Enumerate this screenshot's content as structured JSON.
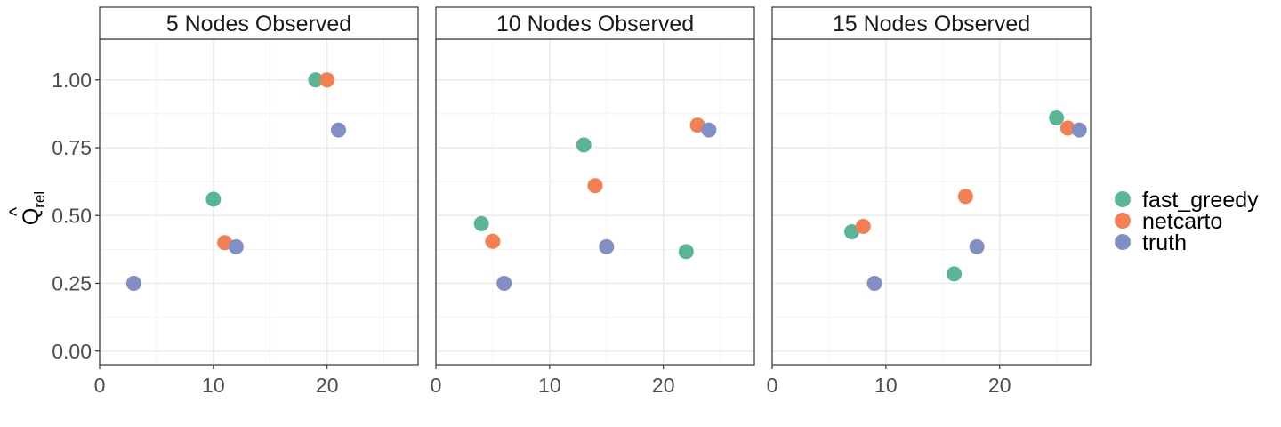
{
  "chart_data": {
    "type": "scatter",
    "ylabel": "Q̂rel",
    "ylabel_main": "Q",
    "ylabel_hat": "^",
    "ylabel_sub": "rel",
    "xlim": [
      0,
      28
    ],
    "ylim": [
      -0.05,
      1.15
    ],
    "x_ticks": [
      0,
      10,
      20
    ],
    "y_ticks": [
      0.0,
      0.25,
      0.5,
      0.75,
      1.0
    ],
    "y_tick_labels": [
      "0.00",
      "0.25",
      "0.50",
      "0.75",
      "1.00"
    ],
    "grid": true,
    "legend_position": "right",
    "legend": [
      {
        "name": "fast_greedy",
        "color": "#5ab595"
      },
      {
        "name": "netcarto",
        "color": "#f47f52"
      },
      {
        "name": "truth",
        "color": "#818fc4"
      }
    ],
    "panels": [
      {
        "title": "5 Nodes Observed",
        "points": [
          {
            "series": "fast_greedy",
            "x": 10,
            "y": 0.56
          },
          {
            "series": "fast_greedy",
            "x": 19,
            "y": 1.0
          },
          {
            "series": "netcarto",
            "x": 11,
            "y": 0.4
          },
          {
            "series": "netcarto",
            "x": 20,
            "y": 1.0
          },
          {
            "series": "truth",
            "x": 3,
            "y": 0.25
          },
          {
            "series": "truth",
            "x": 12,
            "y": 0.385
          },
          {
            "series": "truth",
            "x": 21,
            "y": 0.815
          }
        ]
      },
      {
        "title": "10 Nodes Observed",
        "points": [
          {
            "series": "fast_greedy",
            "x": 4,
            "y": 0.47
          },
          {
            "series": "fast_greedy",
            "x": 13,
            "y": 0.76
          },
          {
            "series": "fast_greedy",
            "x": 22,
            "y": 0.367
          },
          {
            "series": "netcarto",
            "x": 5,
            "y": 0.405
          },
          {
            "series": "netcarto",
            "x": 14,
            "y": 0.61
          },
          {
            "series": "netcarto",
            "x": 23,
            "y": 0.833
          },
          {
            "series": "truth",
            "x": 6,
            "y": 0.25
          },
          {
            "series": "truth",
            "x": 15,
            "y": 0.385
          },
          {
            "series": "truth",
            "x": 24,
            "y": 0.815
          }
        ]
      },
      {
        "title": "15 Nodes Observed",
        "points": [
          {
            "series": "fast_greedy",
            "x": 7,
            "y": 0.44
          },
          {
            "series": "fast_greedy",
            "x": 16,
            "y": 0.285
          },
          {
            "series": "fast_greedy",
            "x": 25,
            "y": 0.86
          },
          {
            "series": "netcarto",
            "x": 8,
            "y": 0.46
          },
          {
            "series": "netcarto",
            "x": 17,
            "y": 0.57
          },
          {
            "series": "netcarto",
            "x": 26,
            "y": 0.822
          },
          {
            "series": "truth",
            "x": 9,
            "y": 0.25
          },
          {
            "series": "truth",
            "x": 18,
            "y": 0.385
          },
          {
            "series": "truth",
            "x": 27,
            "y": 0.815
          }
        ]
      }
    ]
  }
}
